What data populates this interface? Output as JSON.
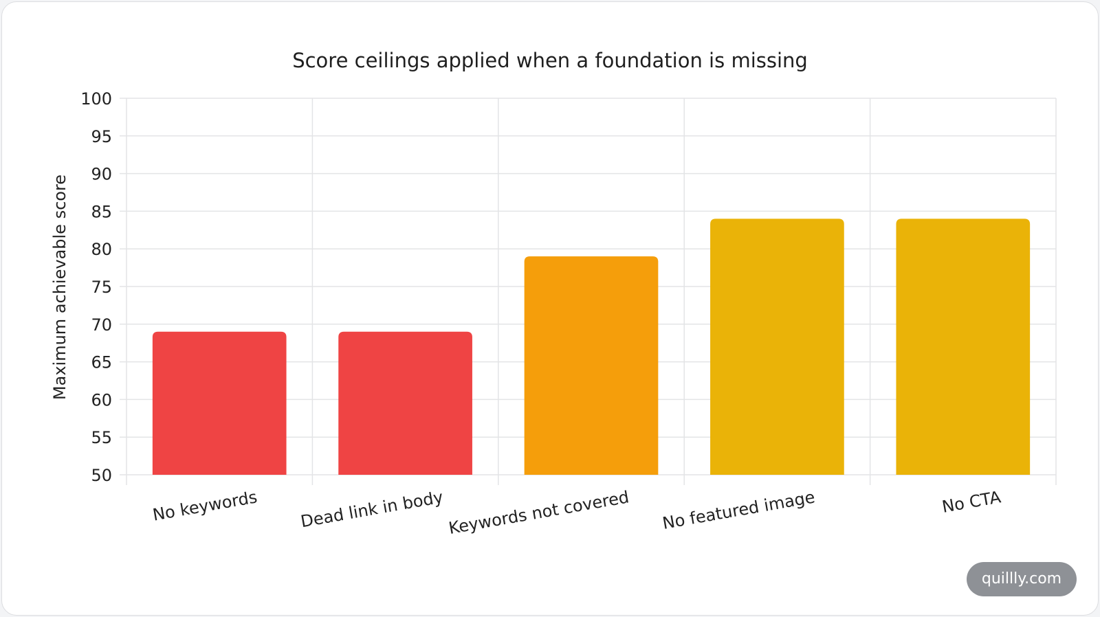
{
  "watermark": "quillly.com",
  "chart_data": {
    "type": "bar",
    "title": "Score ceilings applied when a foundation is missing",
    "xlabel": "",
    "ylabel": "Maximum achievable score",
    "ylim": [
      50,
      100
    ],
    "yticks": [
      50,
      55,
      60,
      65,
      70,
      75,
      80,
      85,
      90,
      95,
      100
    ],
    "grid": true,
    "legend": "none",
    "categories": [
      "No keywords",
      "Dead link in body",
      "Keywords not covered",
      "No featured image",
      "No CTA"
    ],
    "values": [
      69,
      69,
      79,
      84,
      84
    ],
    "colors": [
      "#ef4444",
      "#ef4444",
      "#f59e0b",
      "#eab308",
      "#eab308"
    ]
  }
}
